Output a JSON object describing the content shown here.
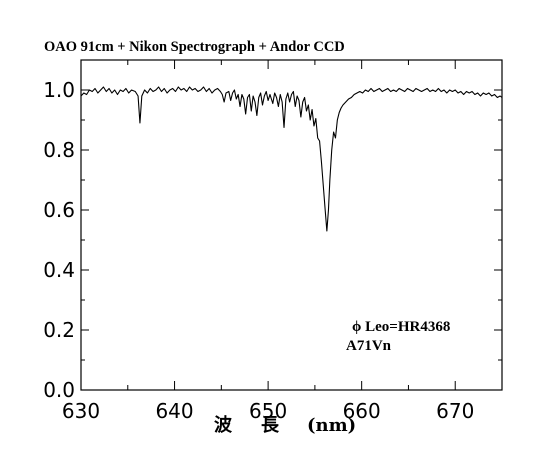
{
  "chart_data": {
    "type": "line",
    "title": "OAO 91cm + Nikon Spectrograph + Andor CCD",
    "xlabel_chars": [
      "波",
      "長",
      "(nm)"
    ],
    "ylabel": "",
    "xlim": [
      630,
      675
    ],
    "ylim": [
      0.0,
      1.1
    ],
    "x_ticks": [
      630,
      640,
      650,
      660,
      670
    ],
    "x_tick_labels": [
      "630",
      "640",
      "650",
      "660",
      "670"
    ],
    "y_ticks": [
      0.0,
      0.2,
      0.4,
      0.6,
      0.8,
      1.0
    ],
    "y_tick_labels": [
      "0.0",
      "0.2",
      "0.4",
      "0.6",
      "0.8",
      "1.0"
    ],
    "grid": false,
    "annotations": [
      "ϕ Leo=HR4368",
      "A71Vn"
    ],
    "series": [
      {
        "values": [
          [
            630.0,
            0.98
          ],
          [
            630.3,
            0.99
          ],
          [
            630.6,
            0.985
          ],
          [
            630.9,
            1.0
          ],
          [
            631.2,
            0.995
          ],
          [
            631.5,
            1.005
          ],
          [
            631.8,
            0.99
          ],
          [
            632.1,
            1.0
          ],
          [
            632.4,
            1.01
          ],
          [
            632.7,
            0.995
          ],
          [
            633.0,
            1.005
          ],
          [
            633.3,
            0.99
          ],
          [
            633.6,
            1.0
          ],
          [
            633.9,
            0.985
          ],
          [
            634.2,
            1.0
          ],
          [
            634.5,
            0.995
          ],
          [
            634.8,
            1.005
          ],
          [
            635.1,
            0.99
          ],
          [
            635.4,
            1.0
          ],
          [
            635.8,
            0.995
          ],
          [
            636.1,
            0.98
          ],
          [
            636.3,
            0.89
          ],
          [
            636.5,
            0.98
          ],
          [
            636.8,
            1.0
          ],
          [
            637.1,
            0.99
          ],
          [
            637.4,
            1.005
          ],
          [
            637.7,
            0.995
          ],
          [
            638.0,
            1.0
          ],
          [
            638.3,
            1.01
          ],
          [
            638.6,
            0.995
          ],
          [
            638.9,
            1.005
          ],
          [
            639.2,
            0.99
          ],
          [
            639.5,
            1.0
          ],
          [
            639.8,
            1.005
          ],
          [
            640.1,
            0.995
          ],
          [
            640.4,
            1.01
          ],
          [
            640.7,
            1.0
          ],
          [
            641.0,
            1.005
          ],
          [
            641.3,
            0.995
          ],
          [
            641.6,
            1.01
          ],
          [
            641.9,
            1.0
          ],
          [
            642.2,
            1.005
          ],
          [
            642.5,
            0.995
          ],
          [
            642.8,
            1.0
          ],
          [
            643.1,
            1.01
          ],
          [
            643.4,
            0.995
          ],
          [
            643.7,
            1.005
          ],
          [
            644.0,
            0.99
          ],
          [
            644.3,
            1.0
          ],
          [
            644.6,
            1.005
          ],
          [
            644.9,
            0.995
          ],
          [
            645.1,
            0.985
          ],
          [
            645.3,
            0.96
          ],
          [
            645.5,
            0.99
          ],
          [
            645.8,
            0.995
          ],
          [
            646.0,
            0.965
          ],
          [
            646.2,
            0.99
          ],
          [
            646.4,
            1.0
          ],
          [
            646.6,
            0.97
          ],
          [
            646.8,
            0.985
          ],
          [
            647.0,
            0.945
          ],
          [
            647.2,
            0.985
          ],
          [
            647.4,
            0.97
          ],
          [
            647.6,
            0.92
          ],
          [
            647.8,
            0.975
          ],
          [
            648.0,
            0.985
          ],
          [
            648.2,
            0.93
          ],
          [
            648.4,
            0.98
          ],
          [
            648.6,
            0.96
          ],
          [
            648.8,
            0.915
          ],
          [
            649.0,
            0.975
          ],
          [
            649.2,
            0.99
          ],
          [
            649.4,
            0.95
          ],
          [
            649.6,
            0.98
          ],
          [
            649.8,
            0.995
          ],
          [
            650.0,
            0.965
          ],
          [
            650.2,
            0.985
          ],
          [
            650.5,
            0.955
          ],
          [
            650.7,
            0.99
          ],
          [
            650.9,
            0.975
          ],
          [
            651.1,
            0.945
          ],
          [
            651.3,
            0.985
          ],
          [
            651.5,
            0.96
          ],
          [
            651.7,
            0.875
          ],
          [
            651.9,
            0.97
          ],
          [
            652.1,
            0.99
          ],
          [
            652.3,
            0.96
          ],
          [
            652.5,
            0.985
          ],
          [
            652.7,
            0.995
          ],
          [
            652.9,
            0.945
          ],
          [
            653.1,
            0.98
          ],
          [
            653.3,
            0.965
          ],
          [
            653.5,
            0.91
          ],
          [
            653.7,
            0.96
          ],
          [
            653.9,
            0.975
          ],
          [
            654.1,
            0.93
          ],
          [
            654.3,
            0.95
          ],
          [
            654.5,
            0.9
          ],
          [
            654.7,
            0.935
          ],
          [
            654.9,
            0.88
          ],
          [
            655.1,
            0.905
          ],
          [
            655.3,
            0.84
          ],
          [
            655.5,
            0.83
          ],
          [
            655.7,
            0.76
          ],
          [
            655.9,
            0.68
          ],
          [
            656.1,
            0.6
          ],
          [
            656.28,
            0.53
          ],
          [
            656.45,
            0.6
          ],
          [
            656.6,
            0.7
          ],
          [
            656.8,
            0.8
          ],
          [
            657.0,
            0.86
          ],
          [
            657.2,
            0.84
          ],
          [
            657.4,
            0.9
          ],
          [
            657.6,
            0.925
          ],
          [
            657.8,
            0.94
          ],
          [
            658.0,
            0.95
          ],
          [
            658.3,
            0.96
          ],
          [
            658.6,
            0.97
          ],
          [
            658.9,
            0.975
          ],
          [
            659.2,
            0.985
          ],
          [
            659.5,
            0.99
          ],
          [
            659.8,
            0.995
          ],
          [
            660.1,
            0.99
          ],
          [
            660.4,
            1.0
          ],
          [
            660.7,
            0.995
          ],
          [
            661.0,
            1.005
          ],
          [
            661.3,
            0.995
          ],
          [
            661.6,
            1.0
          ],
          [
            661.9,
            1.005
          ],
          [
            662.2,
            0.995
          ],
          [
            662.5,
            1.0
          ],
          [
            662.8,
            1.005
          ],
          [
            663.1,
            0.995
          ],
          [
            663.4,
            1.0
          ],
          [
            663.7,
            0.995
          ],
          [
            664.0,
            1.005
          ],
          [
            664.3,
            1.0
          ],
          [
            664.6,
            0.995
          ],
          [
            664.9,
            1.005
          ],
          [
            665.2,
            1.0
          ],
          [
            665.5,
            0.995
          ],
          [
            665.8,
            1.005
          ],
          [
            666.1,
            1.0
          ],
          [
            666.4,
            0.995
          ],
          [
            666.7,
            1.0
          ],
          [
            667.0,
            1.005
          ],
          [
            667.3,
            0.995
          ],
          [
            667.6,
            1.0
          ],
          [
            667.9,
            0.995
          ],
          [
            668.2,
            1.005
          ],
          [
            668.5,
            0.995
          ],
          [
            668.8,
            1.0
          ],
          [
            669.1,
            0.99
          ],
          [
            669.4,
            1.0
          ],
          [
            669.7,
            0.995
          ],
          [
            670.0,
            1.0
          ],
          [
            670.3,
            0.99
          ],
          [
            670.6,
            0.995
          ],
          [
            670.9,
            0.985
          ],
          [
            671.2,
            0.995
          ],
          [
            671.5,
            0.99
          ],
          [
            671.8,
            0.995
          ],
          [
            672.1,
            0.985
          ],
          [
            672.4,
            0.99
          ],
          [
            672.7,
            0.98
          ],
          [
            673.0,
            0.99
          ],
          [
            673.3,
            0.985
          ],
          [
            673.6,
            0.99
          ],
          [
            673.9,
            0.98
          ],
          [
            674.2,
            0.985
          ],
          [
            674.5,
            0.975
          ],
          [
            674.8,
            0.98
          ],
          [
            675.0,
            0.975
          ]
        ]
      }
    ]
  }
}
